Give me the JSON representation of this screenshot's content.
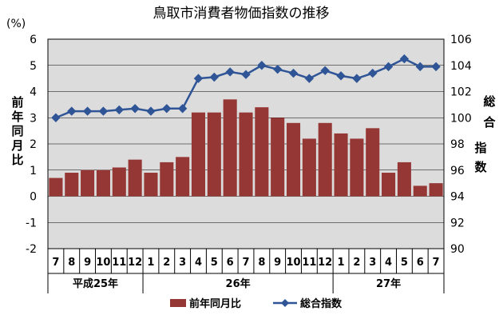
{
  "chart_data": {
    "type": "bar",
    "title": "鳥取市消費者物価指数の推移",
    "categories": [
      "7",
      "8",
      "9",
      "10",
      "11",
      "12",
      "1",
      "2",
      "3",
      "4",
      "5",
      "6",
      "7",
      "8",
      "9",
      "10",
      "11",
      "12",
      "1",
      "2",
      "3",
      "4",
      "5",
      "6",
      "7"
    ],
    "groups": [
      {
        "label": "平成25年",
        "span": 6
      },
      {
        "label": "26年",
        "span": 12
      },
      {
        "label": "27年",
        "span": 7
      }
    ],
    "left_axis": {
      "label": "前年同月比",
      "unit": "(%)",
      "ylim": [
        -2,
        6
      ],
      "ticks": [
        -2,
        -1,
        0,
        1,
        2,
        3,
        4,
        5,
        6
      ]
    },
    "right_axis": {
      "label": "総合指数",
      "ylim": [
        90,
        106
      ],
      "ticks": [
        90,
        92,
        94,
        96,
        98,
        100,
        102,
        104,
        106
      ]
    },
    "series": [
      {
        "name": "前年同月比",
        "type": "bar",
        "axis": "left",
        "color": "#953735",
        "values": [
          0.7,
          0.9,
          1.0,
          1.0,
          1.1,
          1.4,
          0.9,
          1.3,
          1.5,
          3.2,
          3.2,
          3.7,
          3.2,
          3.4,
          3.0,
          2.8,
          2.2,
          2.8,
          2.4,
          2.2,
          2.6,
          0.9,
          1.3,
          0.4,
          0.5
        ]
      },
      {
        "name": "総合指数",
        "type": "line",
        "axis": "right",
        "color": "#2F5597",
        "marker": "diamond",
        "values": [
          100.0,
          100.5,
          100.5,
          100.5,
          100.6,
          100.7,
          100.5,
          100.7,
          100.7,
          103.0,
          103.1,
          103.5,
          103.3,
          104.0,
          103.7,
          103.4,
          103.0,
          103.6,
          103.2,
          103.0,
          103.4,
          103.9,
          104.5,
          103.9,
          103.9
        ]
      }
    ],
    "grid": true,
    "legend": "bottom"
  }
}
